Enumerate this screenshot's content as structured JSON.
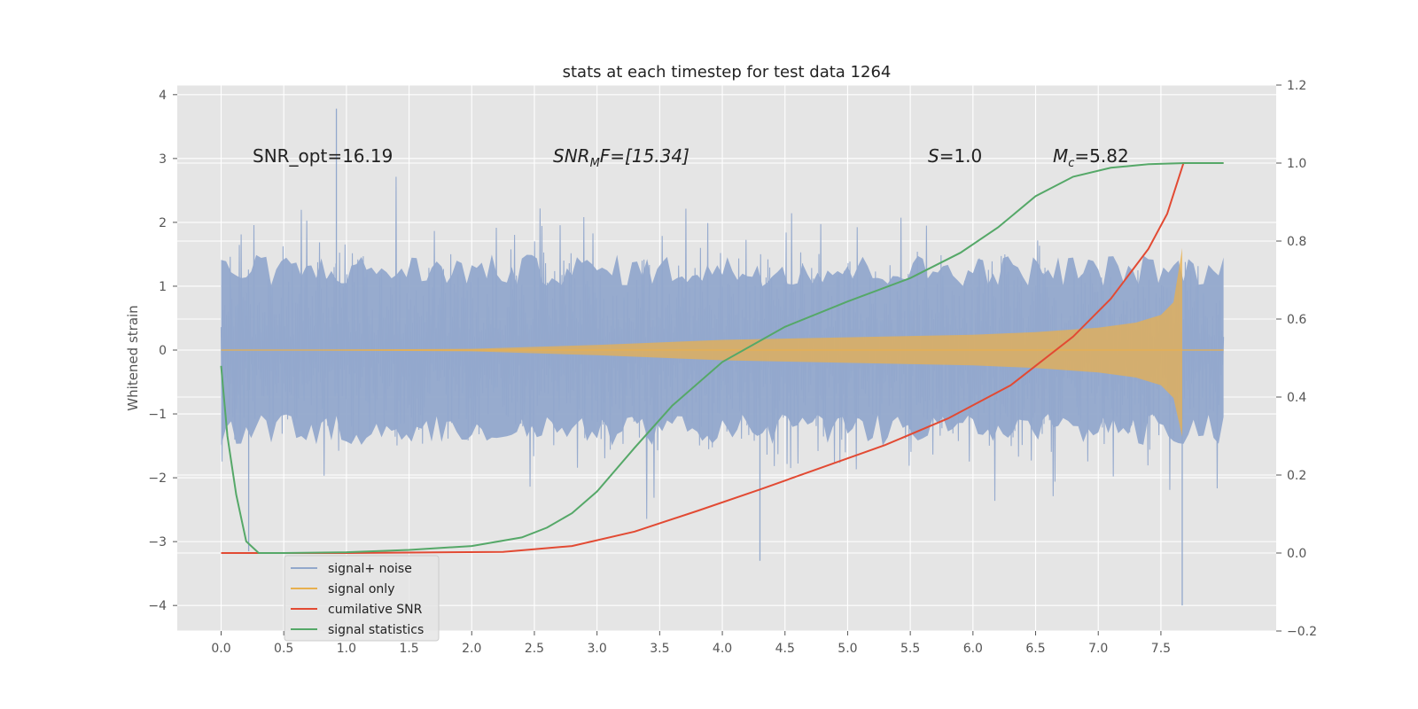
{
  "chart_data": {
    "type": "line",
    "title": "stats at each timestep for test data 1264",
    "xlabel": "",
    "ylabel": "Whitened strain",
    "xlim": [
      -0.35,
      8.42
    ],
    "ylim": [
      -4.4,
      4.15
    ],
    "y2lim": [
      -0.2,
      1.2
    ],
    "grid": true,
    "legend_position": "lower-left",
    "x_tick_labels": [
      "0.0",
      "0.5",
      "1.0",
      "1.5",
      "2.0",
      "2.5",
      "3.0",
      "3.5",
      "4.0",
      "4.5",
      "5.0",
      "5.5",
      "6.0",
      "6.5",
      "7.0",
      "7.5"
    ],
    "y_tick_labels": [
      "−4",
      "−3",
      "−2",
      "−1",
      "0",
      "1",
      "2",
      "3",
      "4"
    ],
    "y2_tick_labels": [
      "−0.2",
      "0.0",
      "0.2",
      "0.4",
      "0.6",
      "0.8",
      "1.0",
      "1.2"
    ],
    "annotations": {
      "snr_opt": "SNR_opt=16.19",
      "snr_mf_base": "SNR",
      "snr_mf_sub": "M",
      "snr_mf_rest": "F=[15.34]",
      "s_var": "S",
      "s_rest": "=1.0",
      "mc_var": "M",
      "mc_sub": "c",
      "mc_rest": "=5.82"
    },
    "series": [
      {
        "name": "signal+ noise",
        "axis": "left",
        "color": "#92a8cc",
        "description_range": "noisy trace spanning roughly -2 to 2.5 with spikes to about 3.8 and -4.0",
        "spikes": [
          [
            0.92,
            3.78
          ],
          [
            7.67,
            -4.0
          ],
          [
            4.3,
            -3.3
          ],
          [
            0.22,
            -3.15
          ]
        ]
      },
      {
        "name": "signal only",
        "axis": "left",
        "color": "#e8b04f",
        "envelope": {
          "x": [
            0.0,
            2.0,
            3.0,
            4.0,
            5.0,
            6.0,
            6.5,
            7.0,
            7.3,
            7.5,
            7.6,
            7.67
          ],
          "y": [
            0.0,
            0.02,
            0.08,
            0.16,
            0.2,
            0.24,
            0.28,
            0.35,
            0.43,
            0.55,
            0.75,
            1.6
          ]
        }
      },
      {
        "name": "cumilative SNR",
        "axis": "right",
        "color": "#e24a33",
        "x": [
          0.0,
          1.0,
          2.25,
          2.8,
          3.3,
          3.8,
          4.3,
          4.8,
          5.3,
          5.8,
          6.3,
          6.8,
          7.1,
          7.4,
          7.55,
          7.68,
          8.0
        ],
        "y": [
          0.0,
          0.0,
          0.003,
          0.018,
          0.055,
          0.108,
          0.163,
          0.22,
          0.277,
          0.345,
          0.43,
          0.555,
          0.652,
          0.78,
          0.87,
          1.0,
          1.0
        ]
      },
      {
        "name": "signal statistics",
        "axis": "right",
        "color": "#55a868",
        "x": [
          0.0,
          0.05,
          0.12,
          0.2,
          0.3,
          0.5,
          1.0,
          1.5,
          2.0,
          2.4,
          2.6,
          2.8,
          3.0,
          3.3,
          3.6,
          4.0,
          4.5,
          5.0,
          5.5,
          5.9,
          6.2,
          6.5,
          6.8,
          7.1,
          7.4,
          7.7,
          8.0
        ],
        "y": [
          0.48,
          0.3,
          0.15,
          0.03,
          0.0,
          0.0,
          0.002,
          0.008,
          0.018,
          0.04,
          0.065,
          0.102,
          0.158,
          0.27,
          0.378,
          0.49,
          0.58,
          0.645,
          0.705,
          0.77,
          0.835,
          0.915,
          0.965,
          0.988,
          0.997,
          1.0,
          1.0
        ]
      }
    ]
  }
}
